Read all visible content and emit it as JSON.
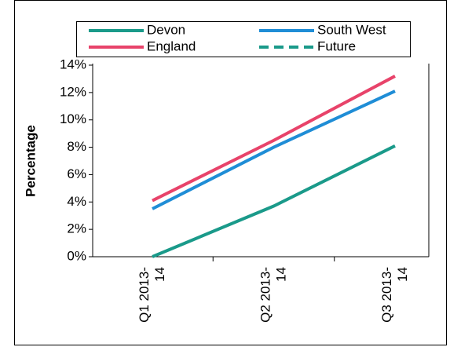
{
  "chart_data": {
    "type": "line",
    "y_label": "Percentage",
    "categories": [
      "Q1 2013-14",
      "Q2 2013-14",
      "Q3 2013-14"
    ],
    "series": [
      {
        "name": "Devon",
        "color": "#1a9a8a",
        "values": [
          0,
          3.7,
          8.1
        ]
      },
      {
        "name": "South West",
        "color": "#1f8dd6",
        "values": [
          3.5,
          8.0,
          12.1
        ]
      },
      {
        "name": "England",
        "color": "#e8436a",
        "values": [
          4.1,
          8.5,
          13.2
        ]
      },
      {
        "name": "Future",
        "color": "#1a9a8a",
        "dashed": true,
        "values": [
          null,
          null,
          null
        ]
      }
    ],
    "ylim": [
      0,
      14
    ],
    "yticks": [
      {
        "value": 0,
        "label": "0%"
      },
      {
        "value": 2,
        "label": "2%"
      },
      {
        "value": 4,
        "label": "4%"
      },
      {
        "value": 6,
        "label": "6%"
      },
      {
        "value": 8,
        "label": "8%"
      },
      {
        "value": 10,
        "label": "10%"
      },
      {
        "value": 12,
        "label": "12%"
      },
      {
        "value": 14,
        "label": "14%"
      }
    ]
  }
}
